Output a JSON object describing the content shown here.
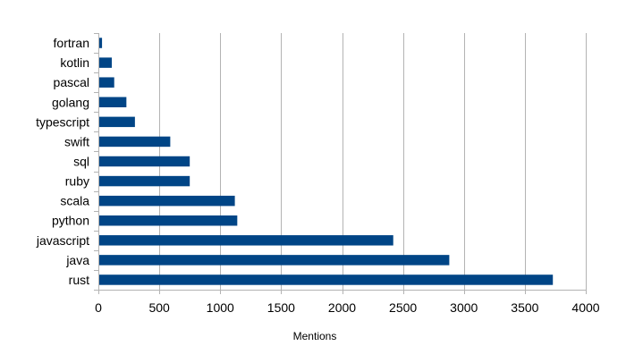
{
  "chart_data": {
    "type": "bar",
    "orientation": "horizontal",
    "categories": [
      "rust",
      "java",
      "javascript",
      "python",
      "scala",
      "ruby",
      "sql",
      "swift",
      "typescript",
      "golang",
      "pascal",
      "kotlin",
      "fortran"
    ],
    "series": [
      {
        "values": [
          3730,
          2880,
          2420,
          1140,
          1120,
          750,
          750,
          590,
          300,
          230,
          130,
          110,
          30
        ]
      }
    ],
    "xlabel": "Mentions",
    "ylabel": "",
    "xlim": [
      0,
      4000
    ],
    "x_ticks": [
      "0",
      "500",
      "1000",
      "1500",
      "2000",
      "2500",
      "3000",
      "3500",
      "4000"
    ],
    "grid": true,
    "legend": "none",
    "colors": {
      "bar": "#004586",
      "grid": "#b3b3b3",
      "axis": "#b3b3b3"
    }
  }
}
